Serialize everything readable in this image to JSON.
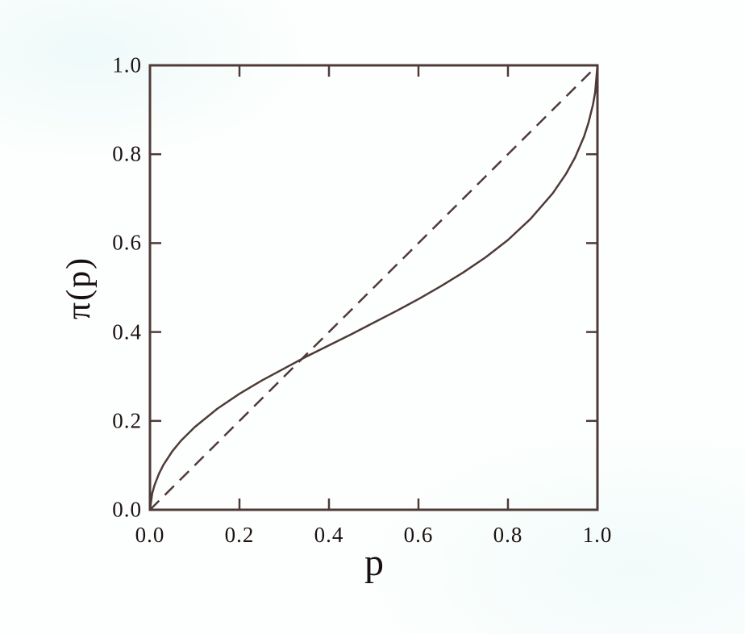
{
  "figure": {
    "background_color": "#fdfffe",
    "line_color": "#4e3b38",
    "text_color": "#1b1210",
    "description": "Probability weighting function pi(p) (solid curve) compared with the identity line (dashed)"
  },
  "chart_data": {
    "type": "line",
    "title": "",
    "xlabel": "p",
    "ylabel": "π(p)",
    "xlim": [
      0,
      1
    ],
    "ylim": [
      0,
      1
    ],
    "grid": false,
    "legend": "none",
    "frame": "box-with-inward-ticks-on-all-sides",
    "x_ticks": [
      0.0,
      0.2,
      0.4,
      0.6,
      0.8,
      1.0
    ],
    "y_ticks": [
      0.0,
      0.2,
      0.4,
      0.6,
      0.8,
      1.0
    ],
    "x_tick_labels": [
      "0.0",
      "0.2",
      "0.4",
      "0.6",
      "0.8",
      "1.0"
    ],
    "y_tick_labels": [
      "0.0",
      "0.2",
      "0.4",
      "0.6",
      "0.8",
      "1.0"
    ],
    "crossover_point": [
      0.34,
      0.34
    ],
    "series": [
      {
        "name": "probability-weighting-function",
        "style": "solid",
        "points": [
          [
            0,
            0
          ],
          [
            0.005,
            0.037
          ],
          [
            0.01,
            0.055
          ],
          [
            0.02,
            0.081
          ],
          [
            0.03,
            0.101
          ],
          [
            0.05,
            0.132
          ],
          [
            0.07,
            0.156
          ],
          [
            0.1,
            0.186
          ],
          [
            0.15,
            0.227
          ],
          [
            0.2,
            0.261
          ],
          [
            0.25,
            0.291
          ],
          [
            0.3,
            0.318
          ],
          [
            0.35,
            0.345
          ],
          [
            0.4,
            0.37
          ],
          [
            0.45,
            0.395
          ],
          [
            0.5,
            0.421
          ],
          [
            0.55,
            0.447
          ],
          [
            0.6,
            0.474
          ],
          [
            0.65,
            0.503
          ],
          [
            0.7,
            0.534
          ],
          [
            0.75,
            0.568
          ],
          [
            0.8,
            0.607
          ],
          [
            0.85,
            0.654
          ],
          [
            0.9,
            0.712
          ],
          [
            0.93,
            0.756
          ],
          [
            0.95,
            0.793
          ],
          [
            0.97,
            0.84
          ],
          [
            0.98,
            0.871
          ],
          [
            0.99,
            0.912
          ],
          [
            0.995,
            0.94
          ],
          [
            1.0,
            1.0
          ]
        ]
      },
      {
        "name": "identity-line",
        "style": "dashed",
        "points": [
          [
            0,
            0
          ],
          [
            1,
            1
          ]
        ]
      }
    ]
  }
}
